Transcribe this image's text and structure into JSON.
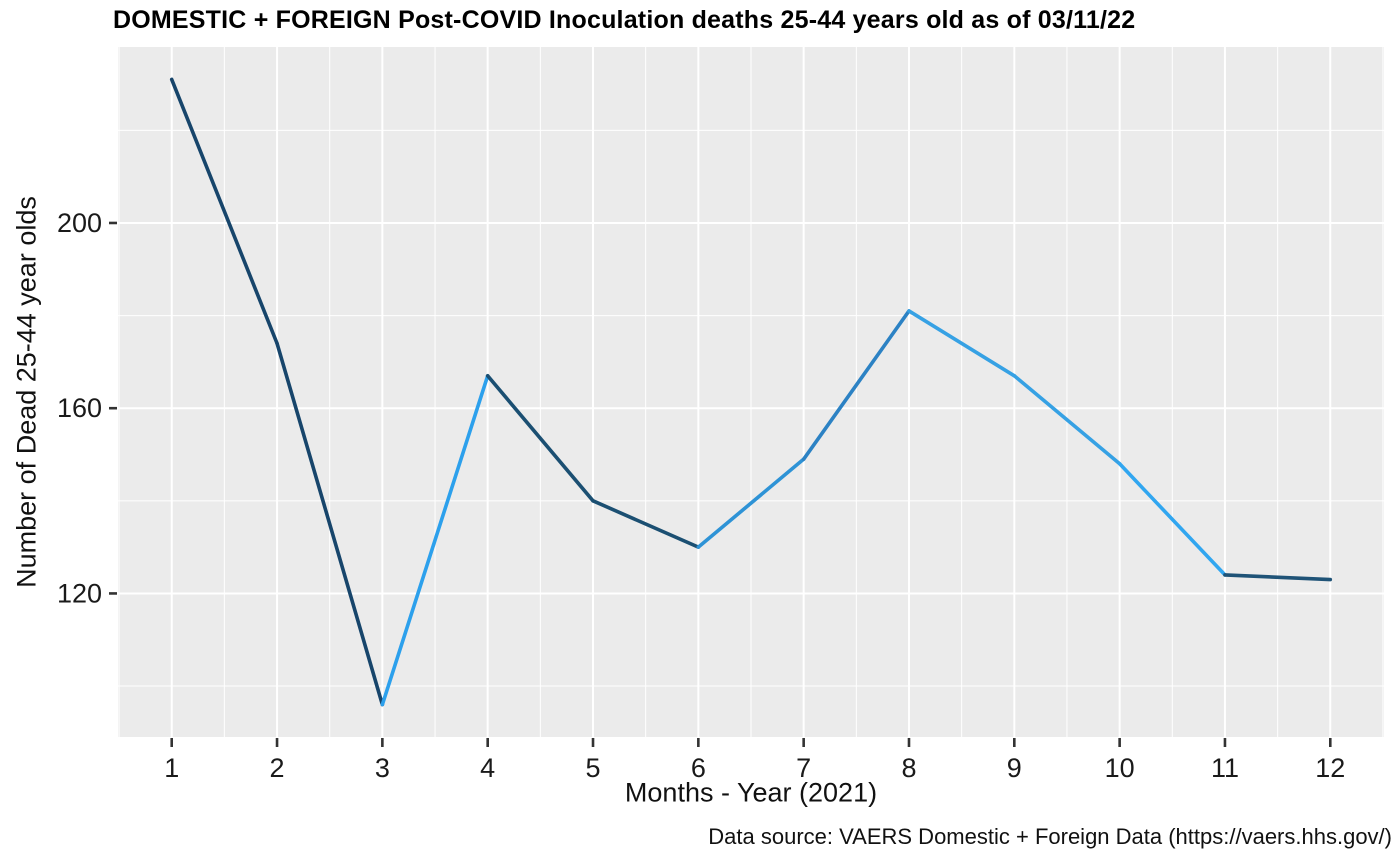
{
  "title": "DOMESTIC + FOREIGN Post-COVID Inoculation deaths 25-44 years old as of 03/11/22",
  "chart_data": {
    "type": "line",
    "title": "DOMESTIC + FOREIGN Post-COVID Inoculation deaths 25-44 years old as of 03/11/22",
    "xlabel": "Months - Year (2021)",
    "ylabel": "Number of Dead 25-44 year olds",
    "caption": "Data source: VAERS Domestic + Foreign Data (https://vaers.hhs.gov/)",
    "x": [
      1,
      2,
      3,
      4,
      5,
      6,
      7,
      8,
      9,
      10,
      11,
      12
    ],
    "values": [
      231,
      174,
      96,
      167,
      140,
      130,
      149,
      181,
      167,
      148,
      124,
      123
    ],
    "segment_colors": [
      "#17456B",
      "#17456B",
      "#2CA0EC",
      "#1B4F72",
      "#1B4F72",
      "#2E93D6",
      "#2C82C4",
      "#36A1E4",
      "#36A1E4",
      "#31A6F0",
      "#1F5377"
    ],
    "x_tick_labels": [
      "1",
      "2",
      "3",
      "4",
      "5",
      "6",
      "7",
      "8",
      "9",
      "10",
      "11",
      "12"
    ],
    "y_tick_labels": [
      "120",
      "160",
      "200"
    ],
    "y_major_ticks": [
      120,
      160,
      200
    ],
    "y_minor_ticks": [
      100,
      140,
      180,
      220
    ],
    "x_minor_ticks": [
      0.5,
      1.5,
      2.5,
      3.5,
      4.5,
      5.5,
      6.5,
      7.5,
      8.5,
      9.5,
      10.5,
      11.5,
      12.5
    ],
    "xlim": [
      0.49,
      12.51
    ],
    "ylim": [
      89,
      238
    ],
    "grid": "on",
    "legend": "none",
    "panel_bg": "#EBEBEB",
    "grid_color": "#FFFFFF",
    "tick_mark_color": "#333333",
    "line_width": 3.6
  }
}
